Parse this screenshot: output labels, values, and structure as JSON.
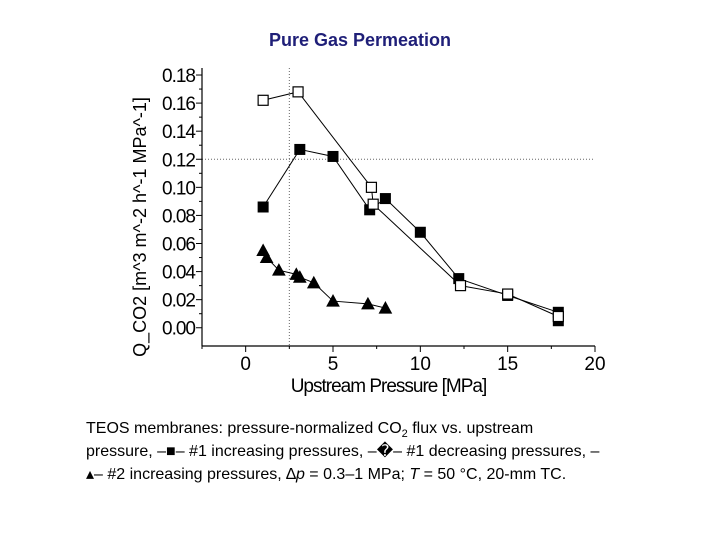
{
  "title": "Pure Gas Permeation",
  "chart_data": {
    "type": "scatter",
    "title": "Pure Gas Permeation",
    "xlabel": "Upstream Pressure [MPa]",
    "ylabel": "Q_CO2 [m^3 m^-2 h^-1 MPa^-1]",
    "xlim": [
      -2.5,
      20
    ],
    "ylim": [
      -0.013,
      0.185
    ],
    "xticks": [
      0,
      5,
      10,
      15,
      20
    ],
    "xtick_labels": [
      "0",
      "5",
      "10",
      "15",
      "20"
    ],
    "yticks": [
      0.0,
      0.02,
      0.04,
      0.06,
      0.08,
      0.1,
      0.12,
      0.14,
      0.16,
      0.18
    ],
    "ytick_labels": [
      "0.00",
      "0.02",
      "0.04",
      "0.06",
      "0.08",
      "0.10",
      "0.12",
      "0.14",
      "0.16",
      "0.18"
    ],
    "reference_lines": {
      "x": 2.5,
      "y": 0.12
    },
    "series": [
      {
        "name": "#1 increasing pressures",
        "marker": "filled-square",
        "x": [
          1.0,
          3.1,
          5.0,
          7.1,
          8.0,
          10.0,
          12.2,
          15.0,
          17.9,
          17.9
        ],
        "y": [
          0.086,
          0.127,
          0.122,
          0.084,
          0.092,
          0.068,
          0.035,
          0.023,
          0.011,
          0.005
        ]
      },
      {
        "name": "#1 decreasing pressures",
        "marker": "open-square",
        "x": [
          1.0,
          3.0,
          7.2,
          7.3,
          12.3,
          15.0,
          17.9
        ],
        "y": [
          0.162,
          0.168,
          0.1,
          0.088,
          0.03,
          0.024,
          0.008
        ]
      },
      {
        "name": "#2 increasing pressures",
        "marker": "filled-triangle",
        "x": [
          1.0,
          1.2,
          1.9,
          2.9,
          3.1,
          3.9,
          5.0,
          7.0,
          8.0
        ],
        "y": [
          0.055,
          0.05,
          0.041,
          0.038,
          0.036,
          0.032,
          0.019,
          0.017,
          0.014
        ]
      }
    ]
  },
  "caption": {
    "line1_a": "TEOS membranes: pressure-normalized CO",
    "line1_sub": "2",
    "line1_b": " flux vs. upstream",
    "line2": "pressure, –■– #1 increasing pressures, –�– #1 decreasing pressures, –",
    "line3_a": "▴– #2 increasing pressures, ",
    "dp_symbol": "∆",
    "dp_var": "p",
    "line3_b": " = 0.3–1 MPa; ",
    "t_var": "T",
    "line3_c": " =  50 °C, 20-mm TC."
  }
}
